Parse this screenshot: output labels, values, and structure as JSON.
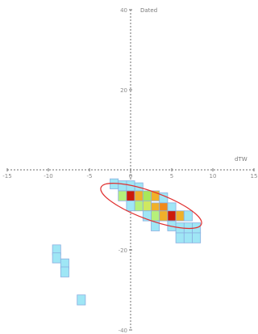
{
  "chart_data": {
    "type": "heatmap",
    "title": "",
    "xlabel": "dTW",
    "ylabel": "Dated",
    "xlim": [
      -15,
      15
    ],
    "ylim": [
      -40,
      40
    ],
    "x_ticks": [
      -15,
      -10,
      -5,
      0,
      5,
      10,
      15
    ],
    "y_ticks": [
      40,
      20,
      -20,
      -40
    ],
    "x_tick_labels": [
      "-15",
      "-10",
      "-5",
      "0",
      "5",
      "10",
      "15"
    ],
    "y_tick_labels": [
      "40",
      "20",
      "-20",
      "-40"
    ],
    "cell_size": [
      1.0,
      2.5
    ],
    "cells": [
      {
        "x": -2.0,
        "y": -3.5,
        "color": "#9fe6f5"
      },
      {
        "x": -1.0,
        "y": -4.0,
        "color": "#9fe6f5"
      },
      {
        "x": 0.0,
        "y": -4.0,
        "color": "#9fe6f5"
      },
      {
        "x": 1.0,
        "y": -4.5,
        "color": "#9fe6f5"
      },
      {
        "x": -1.0,
        "y": -6.5,
        "color": "#b6f07a"
      },
      {
        "x": 0.0,
        "y": -6.5,
        "color": "#cc1a0a"
      },
      {
        "x": 1.0,
        "y": -6.5,
        "color": "#f0b02a"
      },
      {
        "x": 2.0,
        "y": -6.5,
        "color": "#a8e85a"
      },
      {
        "x": 3.0,
        "y": -6.5,
        "color": "#f0b02a"
      },
      {
        "x": 4.0,
        "y": -7.0,
        "color": "#9fe6f5"
      },
      {
        "x": 0.0,
        "y": -9.0,
        "color": "#9fe6f5"
      },
      {
        "x": 1.0,
        "y": -9.0,
        "color": "#b6f07a"
      },
      {
        "x": 2.0,
        "y": -9.0,
        "color": "#cfe860"
      },
      {
        "x": 3.0,
        "y": -9.5,
        "color": "#f0b02a"
      },
      {
        "x": 4.0,
        "y": -9.5,
        "color": "#f08a1a"
      },
      {
        "x": 5.0,
        "y": -9.5,
        "color": "#9fe6f5"
      },
      {
        "x": 2.0,
        "y": -11.5,
        "color": "#9fe6f5"
      },
      {
        "x": 3.0,
        "y": -11.5,
        "color": "#b6f07a"
      },
      {
        "x": 4.0,
        "y": -11.5,
        "color": "#f0b02a"
      },
      {
        "x": 5.0,
        "y": -11.5,
        "color": "#cc1a0a"
      },
      {
        "x": 6.0,
        "y": -11.5,
        "color": "#f0b02a"
      },
      {
        "x": 7.0,
        "y": -11.5,
        "color": "#9fe6f5"
      },
      {
        "x": 3.0,
        "y": -14.0,
        "color": "#9fe6f5"
      },
      {
        "x": 5.0,
        "y": -14.0,
        "color": "#9fe6f5"
      },
      {
        "x": 6.0,
        "y": -14.5,
        "color": "#9fe6f5"
      },
      {
        "x": 7.0,
        "y": -14.5,
        "color": "#9fe6f5"
      },
      {
        "x": 8.0,
        "y": -14.5,
        "color": "#9fe6f5"
      },
      {
        "x": 6.0,
        "y": -17.0,
        "color": "#9fe6f5"
      },
      {
        "x": 7.0,
        "y": -17.0,
        "color": "#9fe6f5"
      },
      {
        "x": 8.0,
        "y": -17.0,
        "color": "#9fe6f5"
      },
      {
        "x": -9.0,
        "y": -20.0,
        "color": "#9fe6f5"
      },
      {
        "x": -9.0,
        "y": -22.0,
        "color": "#9fe6f5"
      },
      {
        "x": -8.0,
        "y": -23.5,
        "color": "#9fe6f5"
      },
      {
        "x": -8.0,
        "y": -25.5,
        "color": "#9fe6f5"
      },
      {
        "x": -6.0,
        "y": -32.5,
        "color": "#9fe6f5"
      }
    ],
    "ellipse": {
      "cx": 2.5,
      "cy": -9.0,
      "rx": 6.5,
      "ry": 3.5,
      "rotation_deg": -20,
      "color": "#e03030"
    },
    "grid": false,
    "legend": "none"
  }
}
